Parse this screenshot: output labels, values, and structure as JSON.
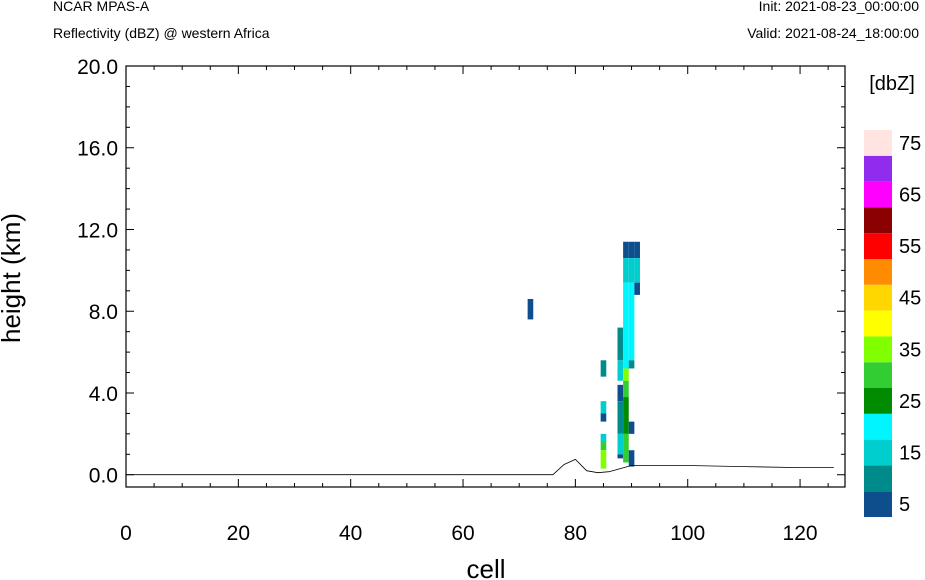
{
  "header": {
    "left_line1": "NCAR MPAS-A",
    "left_line2": "Reflectivity (dBZ) @ western Africa",
    "right_line1": "Init: 2021-08-23_00:00:00",
    "right_line2": "Valid: 2021-08-24_18:00:00"
  },
  "chart_data": {
    "type": "heatmap",
    "title": "Reflectivity (dBZ) @ western Africa",
    "xlabel": "cell",
    "ylabel": "height (km)",
    "xlim": [
      0,
      128
    ],
    "ylim": [
      -0.6,
      20
    ],
    "x_ticks": [
      0,
      20,
      40,
      60,
      80,
      100,
      120
    ],
    "x_tick_labels": [
      "0",
      "20",
      "40",
      "60",
      "80",
      "100",
      "120"
    ],
    "y_ticks": [
      0,
      4,
      8,
      12,
      16,
      20
    ],
    "y_tick_labels": [
      "0.0",
      "4.0",
      "8.0",
      "12.0",
      "16.0",
      "20.0"
    ],
    "colorbar": {
      "label": "[dbZ]",
      "levels": [
        5,
        10,
        15,
        20,
        25,
        30,
        35,
        40,
        45,
        50,
        55,
        60,
        65,
        70,
        75
      ],
      "colors": [
        "#0f4e8c",
        "#008b8b",
        "#00cdcd",
        "#00f5ff",
        "#008b00",
        "#32cd32",
        "#7fff00",
        "#ffff00",
        "#ffd700",
        "#ff8c00",
        "#ff0000",
        "#8b0000",
        "#ff00ff",
        "#912cee",
        "#ffe4e1"
      ],
      "tick_labels": [
        "5",
        "15",
        "25",
        "35",
        "45",
        "55",
        "65",
        "75"
      ]
    },
    "terrain": [
      [
        0,
        0.0
      ],
      [
        20,
        0.0
      ],
      [
        40,
        0.0
      ],
      [
        60,
        0.0
      ],
      [
        76,
        0.0
      ],
      [
        78,
        0.5
      ],
      [
        80,
        0.75
      ],
      [
        82,
        0.2
      ],
      [
        84,
        0.1
      ],
      [
        86,
        0.15
      ],
      [
        88,
        0.3
      ],
      [
        90,
        0.45
      ],
      [
        100,
        0.45
      ],
      [
        110,
        0.4
      ],
      [
        120,
        0.35
      ],
      [
        126,
        0.35
      ]
    ],
    "cells": [
      {
        "x": 72,
        "y0": 7.6,
        "y1": 8.6,
        "dbz": 5
      },
      {
        "x": 85,
        "y0": 4.8,
        "y1": 5.6,
        "dbz": 10
      },
      {
        "x": 85,
        "y0": 3.0,
        "y1": 3.6,
        "dbz": 15
      },
      {
        "x": 85,
        "y0": 2.6,
        "y1": 3.0,
        "dbz": 5
      },
      {
        "x": 85,
        "y0": 1.6,
        "y1": 2.0,
        "dbz": 15
      },
      {
        "x": 85,
        "y0": 1.2,
        "y1": 1.6,
        "dbz": 30
      },
      {
        "x": 85,
        "y0": 0.3,
        "y1": 1.2,
        "dbz": 35
      },
      {
        "x": 88,
        "y0": 5.6,
        "y1": 7.2,
        "dbz": 10
      },
      {
        "x": 88,
        "y0": 4.6,
        "y1": 5.6,
        "dbz": 15
      },
      {
        "x": 88,
        "y0": 3.6,
        "y1": 4.4,
        "dbz": 5
      },
      {
        "x": 88,
        "y0": 2.0,
        "y1": 3.6,
        "dbz": 10
      },
      {
        "x": 88,
        "y0": 1.0,
        "y1": 2.0,
        "dbz": 15
      },
      {
        "x": 88,
        "y0": 0.8,
        "y1": 1.0,
        "dbz": 5
      },
      {
        "x": 89,
        "y0": 10.6,
        "y1": 11.4,
        "dbz": 5
      },
      {
        "x": 89,
        "y0": 9.4,
        "y1": 10.6,
        "dbz": 15
      },
      {
        "x": 89,
        "y0": 5.2,
        "y1": 9.4,
        "dbz": 20
      },
      {
        "x": 89,
        "y0": 4.6,
        "y1": 5.2,
        "dbz": 35
      },
      {
        "x": 89,
        "y0": 3.8,
        "y1": 4.6,
        "dbz": 30
      },
      {
        "x": 89,
        "y0": 2.0,
        "y1": 3.8,
        "dbz": 25
      },
      {
        "x": 89,
        "y0": 0.6,
        "y1": 2.0,
        "dbz": 30
      },
      {
        "x": 90,
        "y0": 10.6,
        "y1": 11.4,
        "dbz": 5
      },
      {
        "x": 90,
        "y0": 9.4,
        "y1": 10.6,
        "dbz": 15
      },
      {
        "x": 90,
        "y0": 5.6,
        "y1": 9.4,
        "dbz": 20
      },
      {
        "x": 90,
        "y0": 5.2,
        "y1": 5.6,
        "dbz": 10
      },
      {
        "x": 90,
        "y0": 2.0,
        "y1": 2.6,
        "dbz": 5
      },
      {
        "x": 90,
        "y0": 0.4,
        "y1": 1.2,
        "dbz": 5
      },
      {
        "x": 91,
        "y0": 10.6,
        "y1": 11.4,
        "dbz": 5
      },
      {
        "x": 91,
        "y0": 9.4,
        "y1": 10.6,
        "dbz": 15
      },
      {
        "x": 91,
        "y0": 8.8,
        "y1": 9.4,
        "dbz": 5
      }
    ]
  }
}
